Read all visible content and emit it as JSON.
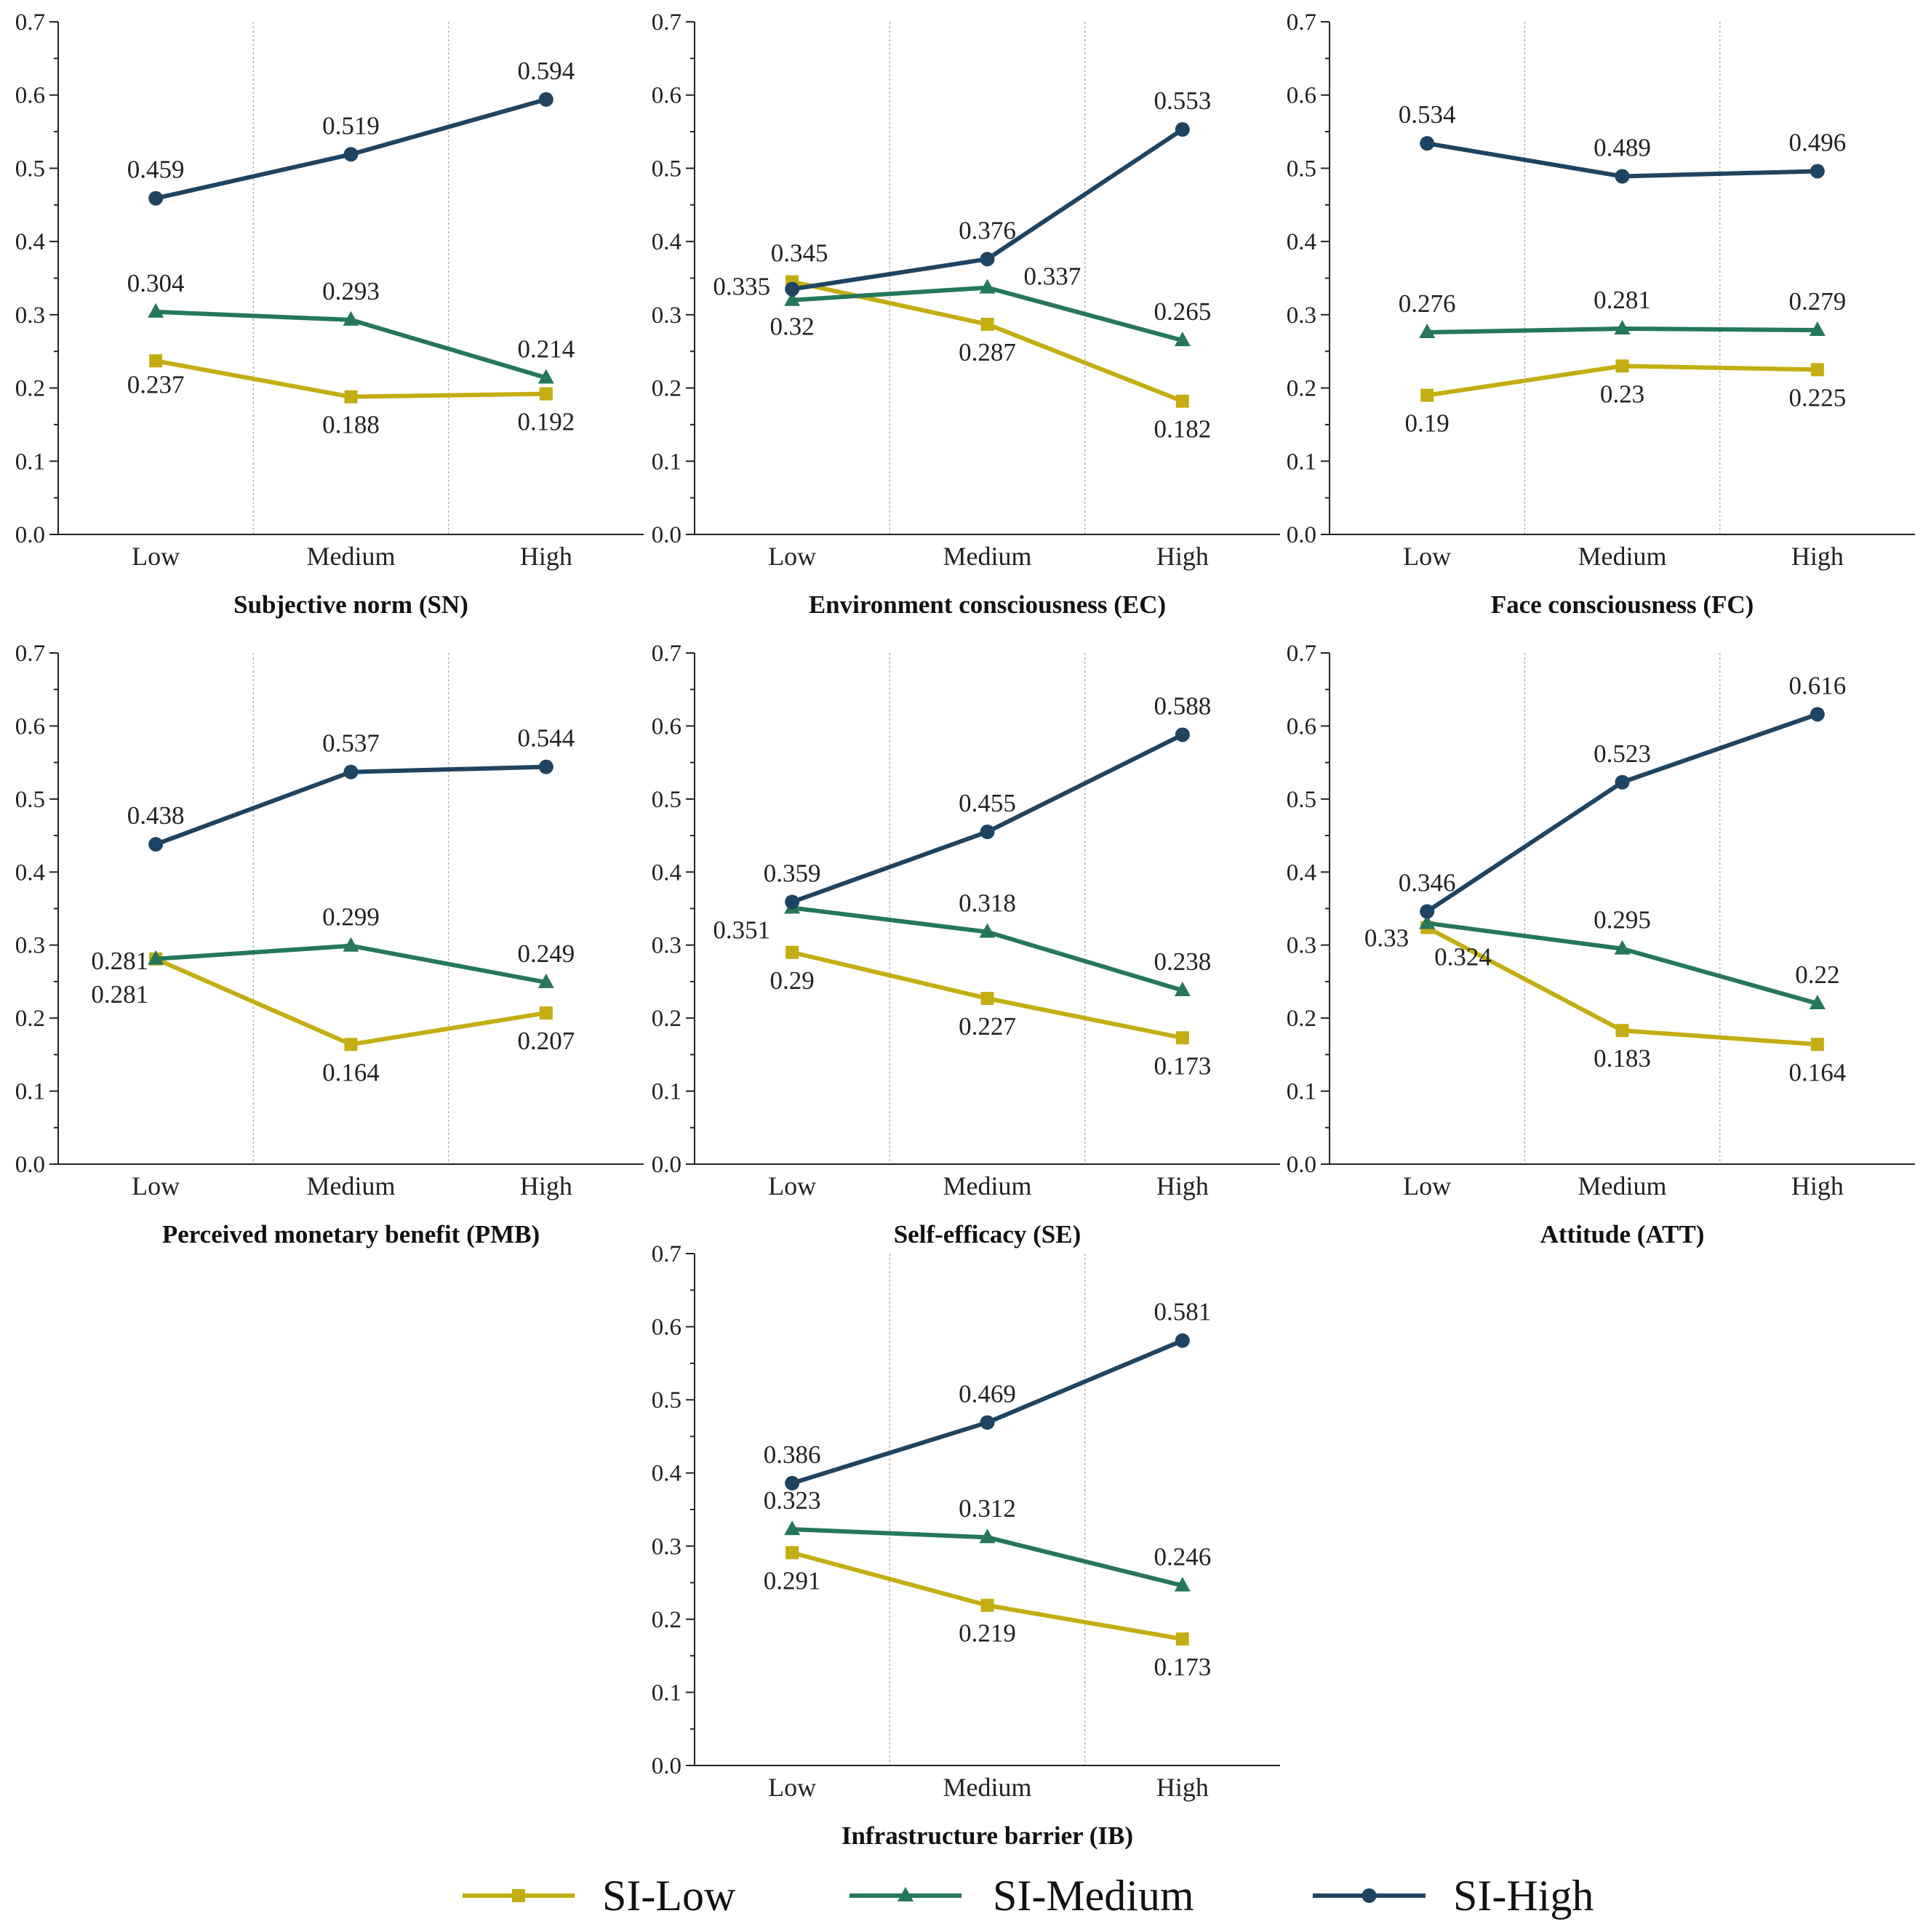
{
  "legend": {
    "series": [
      {
        "name": "SI-Low",
        "color": "#c4ad12",
        "marker": "square"
      },
      {
        "name": "SI-Medium",
        "color": "#26775a",
        "marker": "triangle"
      },
      {
        "name": "SI-High",
        "color": "#1f4461",
        "marker": "circle"
      }
    ]
  },
  "chart_data": [
    {
      "type": "line",
      "title": "Subjective norm (SN)",
      "categories": [
        "Low",
        "Medium",
        "High"
      ],
      "ylim": [
        0,
        0.7
      ],
      "yticks": [
        "0.0",
        "0.1",
        "0.2",
        "0.3",
        "0.4",
        "0.5",
        "0.6",
        "0.7"
      ],
      "series": [
        {
          "name": "SI-Low",
          "values": [
            0.237,
            0.188,
            0.192
          ],
          "labels": [
            "0.237",
            "0.188",
            "0.192"
          ]
        },
        {
          "name": "SI-Medium",
          "values": [
            0.304,
            0.293,
            0.214
          ],
          "labels": [
            "0.304",
            "0.293",
            "0.214"
          ]
        },
        {
          "name": "SI-High",
          "values": [
            0.459,
            0.519,
            0.594
          ],
          "labels": [
            "0.459",
            "0.519",
            "0.594"
          ]
        }
      ]
    },
    {
      "type": "line",
      "title": "Environment consciousness (EC)",
      "categories": [
        "Low",
        "Medium",
        "High"
      ],
      "ylim": [
        0,
        0.7
      ],
      "yticks": [
        "0.0",
        "0.1",
        "0.2",
        "0.3",
        "0.4",
        "0.5",
        "0.6",
        "0.7"
      ],
      "series": [
        {
          "name": "SI-Low",
          "values": [
            0.345,
            0.287,
            0.182
          ],
          "labels": [
            "0.345",
            "0.287",
            "0.182"
          ]
        },
        {
          "name": "SI-Medium",
          "values": [
            0.32,
            0.337,
            0.265
          ],
          "labels": [
            "0.32",
            "0.337",
            "0.265"
          ]
        },
        {
          "name": "SI-High",
          "values": [
            0.335,
            0.376,
            0.553
          ],
          "labels": [
            "0.335",
            "0.376",
            "0.553"
          ]
        }
      ]
    },
    {
      "type": "line",
      "title": "Face consciousness (FC)",
      "categories": [
        "Low",
        "Medium",
        "High"
      ],
      "ylim": [
        0,
        0.7
      ],
      "yticks": [
        "0.0",
        "0.1",
        "0.2",
        "0.3",
        "0.4",
        "0.5",
        "0.6",
        "0.7"
      ],
      "series": [
        {
          "name": "SI-Low",
          "values": [
            0.19,
            0.23,
            0.225
          ],
          "labels": [
            "0.19",
            "0.23",
            "0.225"
          ]
        },
        {
          "name": "SI-Medium",
          "values": [
            0.276,
            0.281,
            0.279
          ],
          "labels": [
            "0.276",
            "0.281",
            "0.279"
          ]
        },
        {
          "name": "SI-High",
          "values": [
            0.534,
            0.489,
            0.496
          ],
          "labels": [
            "0.534",
            "0.489",
            "0.496"
          ]
        }
      ]
    },
    {
      "type": "line",
      "title": "Perceived monetary benefit (PMB)",
      "categories": [
        "Low",
        "Medium",
        "High"
      ],
      "ylim": [
        0,
        0.7
      ],
      "yticks": [
        "0.0",
        "0.1",
        "0.2",
        "0.3",
        "0.4",
        "0.5",
        "0.6",
        "0.7"
      ],
      "series": [
        {
          "name": "SI-Low",
          "values": [
            0.281,
            0.164,
            0.207
          ],
          "labels": [
            "0.281",
            "0.164",
            "0.207"
          ]
        },
        {
          "name": "SI-Medium",
          "values": [
            0.281,
            0.299,
            0.249
          ],
          "labels": [
            "0.281",
            "0.299",
            "0.249"
          ]
        },
        {
          "name": "SI-High",
          "values": [
            0.438,
            0.537,
            0.544
          ],
          "labels": [
            "0.438",
            "0.537",
            "0.544"
          ]
        }
      ]
    },
    {
      "type": "line",
      "title": "Self-efficacy (SE)",
      "categories": [
        "Low",
        "Medium",
        "High"
      ],
      "ylim": [
        0,
        0.7
      ],
      "yticks": [
        "0.0",
        "0.1",
        "0.2",
        "0.3",
        "0.4",
        "0.5",
        "0.6",
        "0.7"
      ],
      "series": [
        {
          "name": "SI-Low",
          "values": [
            0.29,
            0.227,
            0.173
          ],
          "labels": [
            "0.29",
            "0.227",
            "0.173"
          ]
        },
        {
          "name": "SI-Medium",
          "values": [
            0.351,
            0.318,
            0.238
          ],
          "labels": [
            "0.351",
            "0.318",
            "0.238"
          ]
        },
        {
          "name": "SI-High",
          "values": [
            0.359,
            0.455,
            0.588
          ],
          "labels": [
            "0.359",
            "0.455",
            "0.588"
          ]
        }
      ]
    },
    {
      "type": "line",
      "title": "Attitude (ATT)",
      "categories": [
        "Low",
        "Medium",
        "High"
      ],
      "ylim": [
        0,
        0.7
      ],
      "yticks": [
        "0.0",
        "0.1",
        "0.2",
        "0.3",
        "0.4",
        "0.5",
        "0.6",
        "0.7"
      ],
      "series": [
        {
          "name": "SI-Low",
          "values": [
            0.324,
            0.183,
            0.164
          ],
          "labels": [
            "0.324",
            "0.183",
            "0.164"
          ]
        },
        {
          "name": "SI-Medium",
          "values": [
            0.33,
            0.295,
            0.22
          ],
          "labels": [
            "0.33",
            "0.295",
            "0.22"
          ]
        },
        {
          "name": "SI-High",
          "values": [
            0.346,
            0.523,
            0.616
          ],
          "labels": [
            "0.346",
            "0.523",
            "0.616"
          ]
        }
      ]
    },
    {
      "type": "line",
      "title": "Infrastructure barrier (IB)",
      "categories": [
        "Low",
        "Medium",
        "High"
      ],
      "ylim": [
        0,
        0.7
      ],
      "yticks": [
        "0.0",
        "0.1",
        "0.2",
        "0.3",
        "0.4",
        "0.5",
        "0.6",
        "0.7"
      ],
      "series": [
        {
          "name": "SI-Low",
          "values": [
            0.291,
            0.219,
            0.173
          ],
          "labels": [
            "0.291",
            "0.219",
            "0.173"
          ]
        },
        {
          "name": "SI-Medium",
          "values": [
            0.323,
            0.312,
            0.246
          ],
          "labels": [
            "0.323",
            "0.312",
            "0.246"
          ]
        },
        {
          "name": "SI-High",
          "values": [
            0.386,
            0.469,
            0.581
          ],
          "labels": [
            "0.386",
            "0.469",
            "0.581"
          ]
        }
      ]
    }
  ]
}
